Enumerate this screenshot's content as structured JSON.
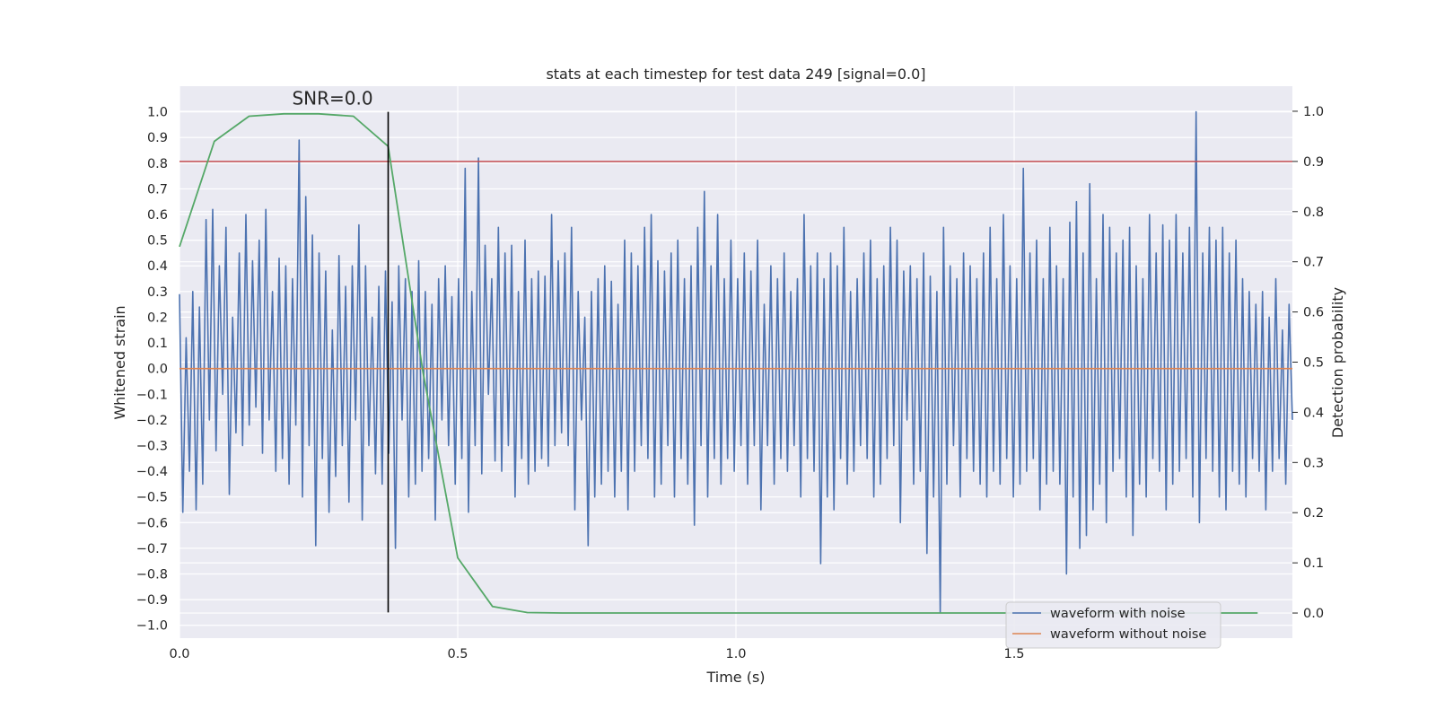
{
  "chart_data": {
    "type": "line",
    "title": "stats at each timestep for test data 249 [signal=0.0]",
    "xlabel": "Time (s)",
    "ylabel_left": "Whitened strain",
    "ylabel_right": "Detection probability",
    "xlim": [
      0.0,
      2.0
    ],
    "ylim_left": [
      -1.05,
      1.1
    ],
    "ylim_right": [
      -0.05,
      1.05
    ],
    "x_ticks": [
      0.0,
      0.5,
      1.0,
      1.5
    ],
    "x_tick_labels": [
      "0.0",
      "0.5",
      "1.0",
      "1.5"
    ],
    "y_ticks_left": [
      1.0,
      0.9,
      0.8,
      0.7,
      0.6,
      0.5,
      0.4,
      0.3,
      0.2,
      0.1,
      0.0,
      -0.1,
      -0.2,
      -0.3,
      -0.4,
      -0.5,
      -0.6,
      -0.7,
      -0.8,
      -0.9,
      -1.0
    ],
    "y_tick_labels_left": [
      "1.0",
      "0.9",
      "0.8",
      "0.7",
      "0.6",
      "0.5",
      "0.4",
      "0.3",
      "0.2",
      "0.1",
      "0.0",
      "−0.1",
      "−0.2",
      "−0.3",
      "−0.4",
      "−0.5",
      "−0.6",
      "−0.7",
      "−0.8",
      "−0.9",
      "−1.0"
    ],
    "y_ticks_right": [
      1.0,
      0.9,
      0.8,
      0.7,
      0.6,
      0.5,
      0.4,
      0.3,
      0.2,
      0.1,
      0.0
    ],
    "y_tick_labels_right": [
      "1.0",
      "0.9",
      "0.8",
      "0.7",
      "0.6",
      "0.5",
      "0.4",
      "0.3",
      "0.2",
      "0.1",
      "0.0"
    ],
    "grid": true,
    "legend_position": "lower-right",
    "annotation": {
      "text": "SNR=0.0",
      "x": 0.275,
      "y": 1.0
    },
    "marker_line_x": 0.375,
    "threshold_probability": 0.9,
    "series": [
      {
        "name": "waveform with noise",
        "color": "#4c72b0",
        "axis": "left",
        "t_start": 0.0,
        "t_end": 2.0,
        "values": [
          0.29,
          -0.56,
          0.12,
          -0.4,
          0.3,
          -0.55,
          0.24,
          -0.45,
          0.58,
          -0.2,
          0.62,
          -0.32,
          0.4,
          -0.1,
          0.55,
          -0.49,
          0.2,
          -0.25,
          0.45,
          -0.3,
          0.6,
          -0.22,
          0.42,
          -0.15,
          0.5,
          -0.33,
          0.62,
          -0.2,
          0.3,
          -0.4,
          0.43,
          -0.35,
          0.4,
          -0.45,
          0.35,
          -0.22,
          0.89,
          -0.5,
          0.67,
          -0.3,
          0.52,
          -0.69,
          0.45,
          -0.35,
          0.38,
          -0.56,
          0.15,
          -0.42,
          0.44,
          -0.3,
          0.32,
          -0.52,
          0.4,
          -0.2,
          0.56,
          -0.59,
          0.4,
          -0.3,
          0.2,
          -0.41,
          0.32,
          -0.45,
          0.38,
          -0.33,
          0.26,
          -0.7,
          0.4,
          -0.2,
          0.35,
          -0.5,
          0.3,
          -0.45,
          0.42,
          -0.4,
          0.3,
          -0.35,
          0.25,
          -0.59,
          0.35,
          -0.2,
          0.4,
          -0.3,
          0.28,
          -0.45,
          0.35,
          -0.35,
          0.78,
          -0.56,
          0.3,
          -0.3,
          0.82,
          -0.41,
          0.48,
          -0.1,
          0.35,
          -0.36,
          0.55,
          -0.4,
          0.45,
          -0.3,
          0.48,
          -0.5,
          0.3,
          -0.35,
          0.5,
          -0.45,
          0.35,
          -0.4,
          0.38,
          -0.35,
          0.36,
          -0.38,
          0.6,
          -0.3,
          0.42,
          -0.25,
          0.45,
          -0.3,
          0.55,
          -0.55,
          0.3,
          -0.2,
          0.2,
          -0.69,
          0.3,
          -0.5,
          0.35,
          -0.45,
          0.4,
          -0.4,
          0.34,
          -0.5,
          0.25,
          -0.4,
          0.5,
          -0.55,
          0.45,
          -0.4,
          0.4,
          -0.3,
          0.55,
          -0.35,
          0.6,
          -0.5,
          0.42,
          -0.45,
          0.38,
          -0.3,
          0.45,
          -0.5,
          0.5,
          -0.35,
          0.35,
          -0.45,
          0.4,
          -0.61,
          0.55,
          -0.3,
          0.69,
          -0.5,
          0.4,
          -0.35,
          0.6,
          -0.45,
          0.35,
          -0.35,
          0.5,
          -0.4,
          0.35,
          -0.3,
          0.45,
          -0.45,
          0.38,
          -0.3,
          0.5,
          -0.55,
          0.25,
          -0.3,
          0.4,
          -0.45,
          0.35,
          -0.35,
          0.45,
          -0.4,
          0.3,
          -0.3,
          0.35,
          -0.5,
          0.6,
          -0.35,
          0.4,
          -0.4,
          0.45,
          -0.76,
          0.35,
          -0.5,
          0.45,
          -0.55,
          0.4,
          -0.35,
          0.55,
          -0.45,
          0.3,
          -0.4,
          0.35,
          -0.3,
          0.45,
          -0.35,
          0.5,
          -0.5,
          0.35,
          -0.45,
          0.4,
          -0.35,
          0.55,
          -0.3,
          0.5,
          -0.6,
          0.38,
          -0.2,
          0.4,
          -0.45,
          0.35,
          -0.4,
          0.45,
          -0.72,
          0.36,
          -0.5,
          0.3,
          -0.95,
          0.55,
          -0.45,
          0.4,
          -0.3,
          0.35,
          -0.5,
          0.45,
          -0.35,
          0.4,
          -0.4,
          0.35,
          -0.45,
          0.45,
          -0.5,
          0.55,
          -0.4,
          0.35,
          -0.45,
          0.6,
          -0.35,
          0.4,
          -0.5,
          0.35,
          -0.45,
          0.78,
          -0.4,
          0.45,
          -0.35,
          0.5,
          -0.55,
          0.35,
          -0.45,
          0.55,
          -0.4,
          0.4,
          -0.45,
          0.35,
          -0.8,
          0.57,
          -0.5,
          0.65,
          -0.7,
          0.45,
          -0.65,
          0.72,
          -0.55,
          0.35,
          -0.45,
          0.6,
          -0.6,
          0.55,
          -0.4,
          0.45,
          -0.35,
          0.5,
          -0.5,
          0.55,
          -0.65,
          0.4,
          -0.45,
          0.35,
          -0.5,
          0.6,
          -0.35,
          0.45,
          -0.4,
          0.56,
          -0.55,
          0.5,
          -0.45,
          0.6,
          -0.4,
          0.45,
          -0.35,
          0.55,
          -0.5,
          1.0,
          -0.6,
          0.45,
          -0.35,
          0.55,
          -0.4,
          0.5,
          -0.5,
          0.55,
          -0.55,
          0.45,
          -0.4,
          0.5,
          -0.45,
          0.35,
          -0.5,
          0.3,
          -0.35,
          0.25,
          -0.4,
          0.3,
          -0.55,
          0.2,
          -0.4,
          0.35,
          -0.35,
          0.15,
          -0.45,
          0.25,
          -0.2
        ]
      },
      {
        "name": "waveform without noise",
        "color": "#dd8452",
        "axis": "left",
        "x": [
          0.0,
          2.0
        ],
        "y": [
          0.0,
          0.0
        ]
      },
      {
        "name": "",
        "color": "#55a868",
        "axis": "right",
        "x": [
          0.0,
          0.0625,
          0.125,
          0.1875,
          0.25,
          0.3125,
          0.375,
          0.4375,
          0.5,
          0.5625,
          0.625,
          0.6875,
          0.75,
          0.8125,
          0.875,
          0.9375,
          1.0,
          1.0625,
          1.125,
          1.1875,
          1.25,
          1.3125,
          1.375,
          1.4375,
          1.5,
          1.5625,
          1.625,
          1.6875,
          1.75,
          1.8125,
          1.875,
          1.9375
        ],
        "y": [
          0.73,
          0.94,
          0.99,
          0.995,
          0.995,
          0.99,
          0.93,
          0.48,
          0.11,
          0.013,
          0.001,
          0.0,
          0.0,
          0.0,
          0.0,
          0.0,
          0.0,
          0.0,
          0.0,
          0.0,
          0.0,
          0.0,
          0.0,
          0.0,
          0.0,
          0.0,
          0.0,
          0.0,
          0.0,
          0.0,
          0.0,
          0.0
        ]
      }
    ]
  }
}
